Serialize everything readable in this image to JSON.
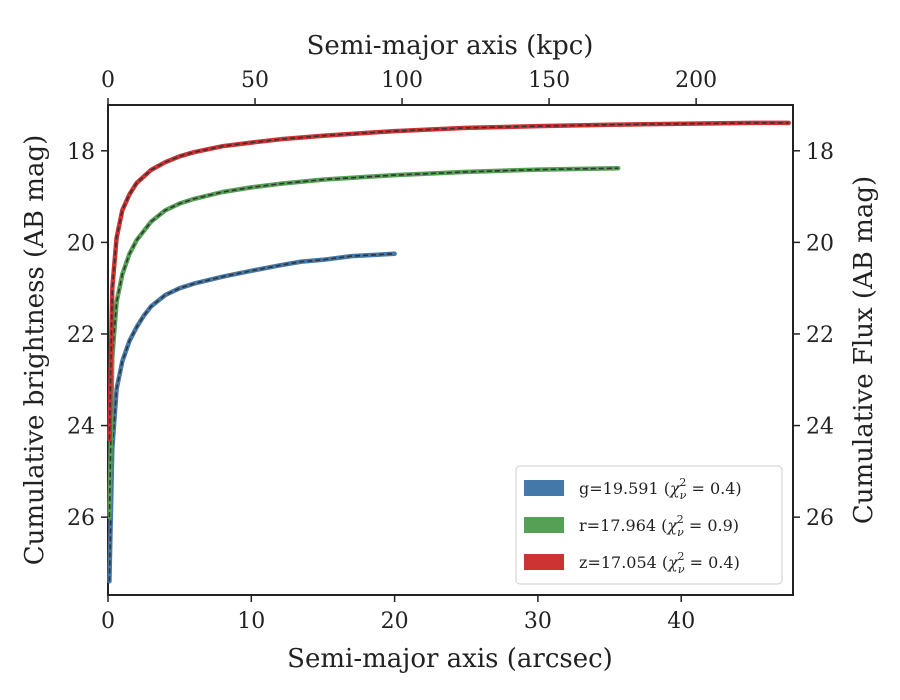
{
  "chart_data": {
    "type": "line",
    "xlabel": "Semi-major axis (arcsec)",
    "ylabel": "Cumulative brightness (AB mag)",
    "x2label": "Semi-major axis (kpc)",
    "y2label": "Cumulative Flux (AB mag)",
    "xlim": [
      0,
      47.8
    ],
    "ylim": [
      27.7,
      17.0
    ],
    "y_inverted": true,
    "x_ticks": [
      "0",
      "10",
      "20",
      "30",
      "40"
    ],
    "y_ticks": [
      "18",
      "20",
      "22",
      "24",
      "26"
    ],
    "x2_ticks": [
      "0",
      "50",
      "100",
      "150",
      "200"
    ],
    "x2_tick_values_arcsec": [
      0,
      10.26,
      20.52,
      30.78,
      41.04
    ],
    "grid": false,
    "legend_position": "lower-right",
    "colors": {
      "g": "#4477aa",
      "r": "#55a055",
      "z": "#cc3333",
      "model": "#333333"
    },
    "series": [
      {
        "name": "g",
        "legend_value": "19.591",
        "legend_chi": "0.4",
        "color": "#4477aa",
        "x": [
          0.1,
          0.3,
          0.6,
          1.0,
          1.5,
          2.0,
          2.5,
          3.0,
          4.0,
          5.0,
          6.0,
          8.0,
          10.0,
          12.0,
          13.5,
          15.0,
          17.0,
          20.0
        ],
        "y": [
          27.4,
          24.5,
          23.2,
          22.6,
          22.15,
          21.85,
          21.6,
          21.4,
          21.15,
          21.0,
          20.9,
          20.75,
          20.62,
          20.5,
          20.42,
          20.38,
          20.3,
          20.25
        ]
      },
      {
        "name": "r",
        "legend_value": "17.964",
        "legend_chi": "0.9",
        "color": "#55a055",
        "x": [
          0.1,
          0.3,
          0.6,
          1.0,
          1.5,
          2.0,
          3.0,
          4.0,
          5.0,
          6.0,
          8.0,
          10.0,
          12.0,
          15.0,
          20.0,
          25.0,
          30.0,
          35.6
        ],
        "y": [
          26.0,
          22.5,
          21.3,
          20.7,
          20.25,
          19.95,
          19.55,
          19.3,
          19.15,
          19.05,
          18.9,
          18.8,
          18.72,
          18.63,
          18.53,
          18.46,
          18.41,
          18.38
        ]
      },
      {
        "name": "z",
        "legend_value": "17.054",
        "legend_chi": "0.4",
        "color": "#cc3333",
        "x": [
          0.1,
          0.3,
          0.6,
          1.0,
          1.5,
          2.0,
          3.0,
          4.0,
          5.0,
          6.0,
          8.0,
          10.0,
          12.0,
          15.0,
          20.0,
          25.0,
          30.0,
          35.0,
          40.0,
          45.0,
          47.5
        ],
        "y": [
          24.3,
          21.0,
          19.9,
          19.3,
          18.95,
          18.7,
          18.42,
          18.25,
          18.12,
          18.03,
          17.9,
          17.82,
          17.75,
          17.67,
          17.57,
          17.5,
          17.46,
          17.43,
          17.41,
          17.39,
          17.39
        ]
      }
    ]
  }
}
